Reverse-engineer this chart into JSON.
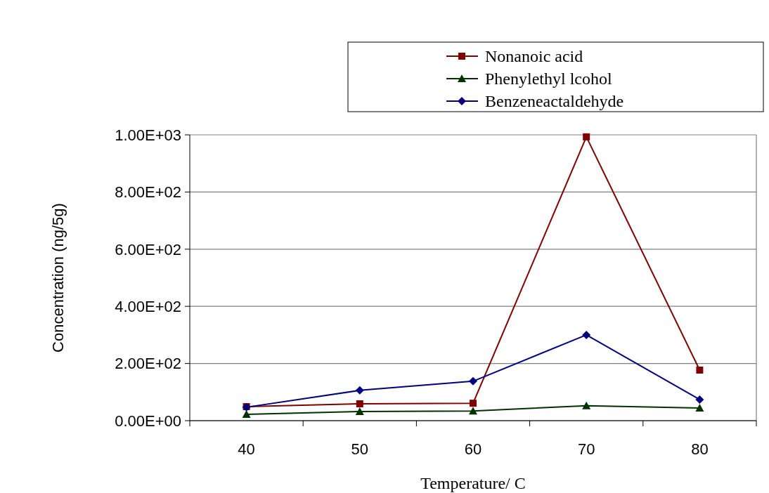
{
  "chart_data": {
    "type": "line",
    "xlabel": "Temperature/ C",
    "ylabel": "Concentration (ng/5g)",
    "categories": [
      "40",
      "50",
      "60",
      "70",
      "80"
    ],
    "series": [
      {
        "name": "Nonanoic acid",
        "color": "#800000",
        "marker": "square",
        "values": [
          49,
          59,
          61,
          993,
          177
        ]
      },
      {
        "name": "Phenylethyl lcohol",
        "color": "#003300",
        "marker": "triangle",
        "values": [
          22,
          32,
          34,
          52,
          44
        ]
      },
      {
        "name": "Benzeneactaldehyde",
        "color": "#000080",
        "marker": "diamond",
        "values": [
          47,
          106,
          138,
          300,
          74
        ]
      }
    ],
    "ylim": [
      0,
      1000
    ],
    "yticks": [
      {
        "value": 0,
        "label": "0.00E+00"
      },
      {
        "value": 200,
        "label": "2.00E+02"
      },
      {
        "value": 400,
        "label": "4.00E+02"
      },
      {
        "value": 600,
        "label": "6.00E+02"
      },
      {
        "value": 800,
        "label": "8.00E+02"
      },
      {
        "value": 1000,
        "label": "1.00E+03"
      }
    ],
    "grid": "y",
    "legend": "top right"
  }
}
